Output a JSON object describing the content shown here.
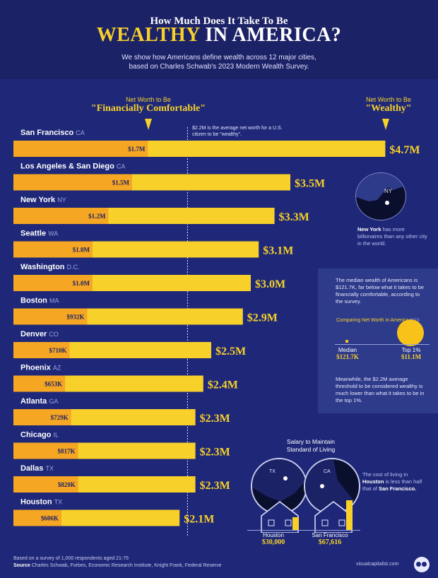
{
  "header": {
    "title_line1": "How Much Does It Take To Be",
    "title_highlight": "WEALTHY",
    "title_rest": "IN AMERICA?",
    "subtitle_line1": "We show how Americans define wealth across 12 major cities,",
    "subtitle_line2": "based on Charles Schwab's 2023 Modern Wealth Survey."
  },
  "labels": {
    "comfortable_small": "Net Worth to Be",
    "comfortable_big": "\"Financially Comfortable\"",
    "wealthy_small": "Net Worth to Be",
    "wealthy_big": "\"Wealthy\"",
    "avg_note": "$2.2M is the average net worth for a U.S. citizen to be \"wealthy\"."
  },
  "colors": {
    "background": "#1f2878",
    "header": "#1c2266",
    "bar_wealthy": "#f7d12a",
    "bar_comfortable": "#f5a623",
    "accent": "#f7d12a"
  },
  "chart_data": {
    "type": "bar",
    "orientation": "horizontal",
    "categories": [
      {
        "city": "San Francisco",
        "state": "CA"
      },
      {
        "city": "Los Angeles & San Diego",
        "state": "CA"
      },
      {
        "city": "New York",
        "state": "NY"
      },
      {
        "city": "Seattle",
        "state": "WA"
      },
      {
        "city": "Washington",
        "state": "D.C."
      },
      {
        "city": "Boston",
        "state": "MA"
      },
      {
        "city": "Denver",
        "state": "CO"
      },
      {
        "city": "Phoenix",
        "state": "AZ"
      },
      {
        "city": "Atlanta",
        "state": "GA"
      },
      {
        "city": "Chicago",
        "state": "IL"
      },
      {
        "city": "Dallas",
        "state": "TX"
      },
      {
        "city": "Houston",
        "state": "TX"
      }
    ],
    "series": [
      {
        "name": "Net Worth to Be \"Wealthy\"",
        "values": [
          4.7,
          3.5,
          3.3,
          3.1,
          3.0,
          2.9,
          2.5,
          2.4,
          2.3,
          2.3,
          2.3,
          2.1
        ],
        "labels": [
          "$4.7M",
          "$3.5M",
          "$3.3M",
          "$3.1M",
          "$3.0M",
          "$2.9M",
          "$2.5M",
          "$2.4M",
          "$2.3M",
          "$2.3M",
          "$2.3M",
          "$2.1M"
        ]
      },
      {
        "name": "Net Worth to Be \"Financially Comfortable\"",
        "values": [
          1.7,
          1.5,
          1.2,
          1.0,
          1.0,
          0.932,
          0.71,
          0.653,
          0.729,
          0.817,
          0.82,
          0.606
        ],
        "labels": [
          "$1.7M",
          "$1.5M",
          "$1.2M",
          "$1.0M",
          "$1.0M",
          "$932K",
          "$710K",
          "$653K",
          "$729K",
          "$817K",
          "$820K",
          "$606K"
        ]
      }
    ],
    "reference_value": 2.2,
    "unit": "$M"
  },
  "ny_panel": {
    "map_label": "NY",
    "text_bold": "New York",
    "text_rest": "has more billionaires than any other city in the world."
  },
  "median_panel": {
    "text": "The median wealth of Americans is $121.7K, far below what it takes to be financially comfortable, according to the survey.",
    "compare_title": "Comparing Net Worth in America",
    "compare_year": "2019",
    "median_label": "Median",
    "median_value": "$121.7K",
    "top_label": "Top 1%",
    "top_value": "$11.1M",
    "footnote": "Meanwhile, the $2.2M average threshold to be considered wealthy is much lower than what it takes to be in the top 1%."
  },
  "salary": {
    "title_line1": "Salary to Maintain",
    "title_line2": "Standard of Living",
    "houston_state": "TX",
    "sf_state": "CA",
    "houston_label": "Houston",
    "houston_value": "$30,000",
    "sf_label": "San Francisco",
    "sf_value": "$67,616",
    "cost_a": "The cost of living in",
    "cost_b": "Houston",
    "cost_c": "is less than half that of",
    "cost_d": "San Francisco."
  },
  "footer": {
    "line1": "Based on a survey of 1,000 respondents aged 21-75",
    "source_label": "Source",
    "source_text": "Charles Schwab, Forbes, Economic Research Institute, Knight Frank, Federal Reserve",
    "brand": "visualcapitalist.com"
  }
}
